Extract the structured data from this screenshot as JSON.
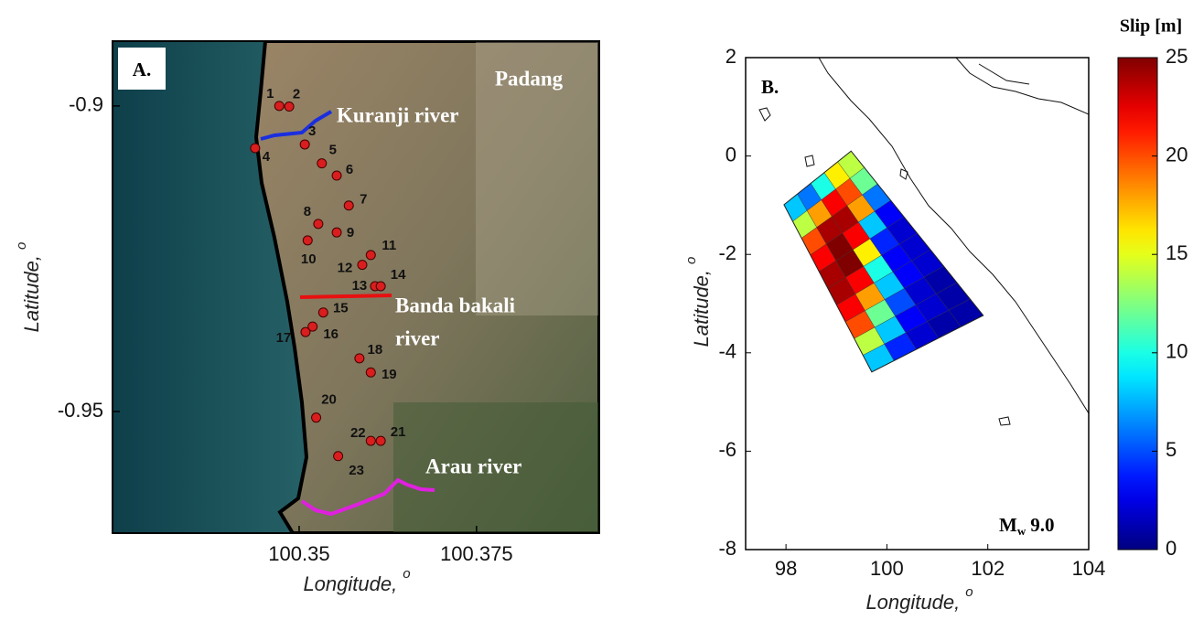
{
  "chart_data": [
    {
      "type": "map",
      "panel_label": "A.",
      "place_label": "Padang",
      "xlabel": "Longitude,",
      "xlabel_sup": "o",
      "ylabel": "Latitude,",
      "ylabel_sup": "o",
      "xlim": [
        100.3237,
        100.3923
      ],
      "ylim": [
        -0.9699,
        -0.8894
      ],
      "xticks": [
        100.35,
        100.375
      ],
      "yticks": [
        -0.95,
        -0.9
      ],
      "rivers": [
        {
          "name": [
            "Kuranji river"
          ],
          "color": "#1a2ee0"
        },
        {
          "name": [
            "Banda bakali",
            "river"
          ],
          "color": "#e81010"
        },
        {
          "name": [
            "Arau river"
          ],
          "color": "#e020e0"
        }
      ],
      "point_color": "#d81e1e",
      "points": [
        {
          "label": "1",
          "lon": 100.3472,
          "lat": -0.9
        },
        {
          "label": "2",
          "lon": 100.3486,
          "lat": -0.9001
        },
        {
          "label": "3",
          "lon": 100.3508,
          "lat": -0.9063
        },
        {
          "label": "4",
          "lon": 100.3438,
          "lat": -0.9069
        },
        {
          "label": "5",
          "lon": 100.3532,
          "lat": -0.9094
        },
        {
          "label": "6",
          "lon": 100.3553,
          "lat": -0.9114
        },
        {
          "label": "7",
          "lon": 100.357,
          "lat": -0.9163
        },
        {
          "label": "8",
          "lon": 100.3527,
          "lat": -0.9193
        },
        {
          "label": "9",
          "lon": 100.3553,
          "lat": -0.9207
        },
        {
          "label": "10",
          "lon": 100.3512,
          "lat": -0.922
        },
        {
          "label": "11",
          "lon": 100.3601,
          "lat": -0.9244
        },
        {
          "label": "12",
          "lon": 100.3589,
          "lat": -0.926
        },
        {
          "label": "13",
          "lon": 100.3607,
          "lat": -0.9295
        },
        {
          "label": "14",
          "lon": 100.3615,
          "lat": -0.9295
        },
        {
          "label": "15",
          "lon": 100.3534,
          "lat": -0.9338
        },
        {
          "label": "16",
          "lon": 100.3519,
          "lat": -0.9361
        },
        {
          "label": "17",
          "lon": 100.3509,
          "lat": -0.937
        },
        {
          "label": "18",
          "lon": 100.3585,
          "lat": -0.9413
        },
        {
          "label": "19",
          "lon": 100.3601,
          "lat": -0.9436
        },
        {
          "label": "20",
          "lon": 100.3524,
          "lat": -0.951
        },
        {
          "label": "21",
          "lon": 100.3615,
          "lat": -0.9548
        },
        {
          "label": "22",
          "lon": 100.3601,
          "lat": -0.9548
        },
        {
          "label": "23",
          "lon": 100.3555,
          "lat": -0.9573
        }
      ]
    },
    {
      "type": "slip",
      "panel_label": "B.",
      "magnitude": {
        "symbol": "M",
        "sub": "w",
        "text": "9.0"
      },
      "xlabel": "Longitude,",
      "xlabel_sup": "o",
      "ylabel": "Latitude,",
      "ylabel_sup": "o",
      "xlim": [
        97.2,
        104
      ],
      "ylim": [
        -8,
        2
      ],
      "xticks": [
        98,
        100,
        102,
        104
      ],
      "yticks": [
        -8,
        -6,
        -4,
        -2,
        0,
        2
      ],
      "fault": {
        "lon": [
          97.96,
          99.29,
          101.91,
          99.7
        ],
        "lat": [
          -0.99,
          0.1,
          -3.24,
          -4.39
        ]
      },
      "slip": [
        [
          8,
          6,
          10,
          16,
          14
        ],
        [
          14,
          18,
          22,
          20,
          12
        ],
        [
          20,
          24,
          24,
          18,
          6
        ],
        [
          22,
          25,
          22,
          8,
          3
        ],
        [
          24,
          25,
          16,
          4,
          2
        ],
        [
          24,
          22,
          10,
          3,
          2
        ],
        [
          22,
          18,
          8,
          3,
          2
        ],
        [
          20,
          12,
          5,
          2,
          1
        ],
        [
          14,
          8,
          3,
          2,
          1
        ],
        [
          8,
          4,
          2,
          1,
          1
        ]
      ],
      "colorbar": {
        "title": "Slip [m]",
        "lim": [
          0,
          25
        ],
        "ticks": [
          0,
          5,
          10,
          15,
          20,
          25
        ]
      }
    }
  ]
}
